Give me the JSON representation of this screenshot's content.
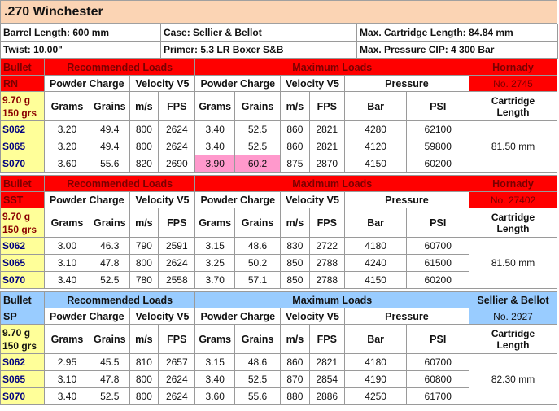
{
  "title": ".270 Winchester",
  "info": {
    "barrel_length": "Barrel Length: 600 mm",
    "twist": "Twist: 10.00\"",
    "case": "Case: Sellier & Bellot",
    "primer": "Primer: 5.3 LR Boxer S&B",
    "max_cartridge_length": "Max. Cartridge Length: 84.84 mm",
    "max_pressure": "Max. Pressure CIP: 4 300 Bar"
  },
  "headers": {
    "bullet": "Bullet",
    "recommended": "Recommended Loads",
    "maximum": "Maximum Loads",
    "powder_charge": "Powder Charge",
    "velocity": "Velocity V5",
    "pressure": "Pressure",
    "grams": "Grams",
    "grains": "Grains",
    "ms": "m/s",
    "fps": "FPS",
    "bar": "Bar",
    "psi": "PSI",
    "cartridge_length_1": "Cartridge",
    "cartridge_length_2": "Length"
  },
  "blocks": [
    {
      "type": "RN",
      "weight_g": "9.70 g",
      "weight_grs": "150 grs",
      "maker": "Hornady",
      "number": "No. 2745",
      "cartridge_length": "81.50 mm",
      "rows": [
        {
          "id": "S062",
          "rg": "3.20",
          "rgr": "49.4",
          "rms": "800",
          "rfps": "2624",
          "mg": "3.40",
          "mgr": "52.5",
          "mms": "860",
          "mfps": "2821",
          "bar": "4280",
          "psi": "62100"
        },
        {
          "id": "S065",
          "rg": "3.20",
          "rgr": "49.4",
          "rms": "800",
          "rfps": "2624",
          "mg": "3.40",
          "mgr": "52.5",
          "mms": "860",
          "mfps": "2821",
          "bar": "4120",
          "psi": "59800"
        },
        {
          "id": "S070",
          "rg": "3.60",
          "rgr": "55.6",
          "rms": "820",
          "rfps": "2690",
          "mg": "3.90",
          "mgr": "60.2",
          "mms": "875",
          "mfps": "2870",
          "bar": "4150",
          "psi": "60200"
        }
      ]
    },
    {
      "type": "SST",
      "weight_g": "9.70 g",
      "weight_grs": "150 grs",
      "maker": "Hornady",
      "number": "No. 27402",
      "cartridge_length": "81.50 mm",
      "rows": [
        {
          "id": "S062",
          "rg": "3.00",
          "rgr": "46.3",
          "rms": "790",
          "rfps": "2591",
          "mg": "3.15",
          "mgr": "48.6",
          "mms": "830",
          "mfps": "2722",
          "bar": "4180",
          "psi": "60700"
        },
        {
          "id": "S065",
          "rg": "3.10",
          "rgr": "47.8",
          "rms": "800",
          "rfps": "2624",
          "mg": "3.25",
          "mgr": "50.2",
          "mms": "850",
          "mfps": "2788",
          "bar": "4240",
          "psi": "61500"
        },
        {
          "id": "S070",
          "rg": "3.40",
          "rgr": "52.5",
          "rms": "780",
          "rfps": "2558",
          "mg": "3.70",
          "mgr": "57.1",
          "mms": "850",
          "mfps": "2788",
          "bar": "4150",
          "psi": "60200"
        }
      ]
    },
    {
      "type": "SP",
      "weight_g": "9.70 g",
      "weight_grs": "150 grs",
      "maker": "Sellier & Bellot",
      "number": "No. 2927",
      "cartridge_length": "82.30 mm",
      "rows": [
        {
          "id": "S062",
          "rg": "2.95",
          "rgr": "45.5",
          "rms": "810",
          "rfps": "2657",
          "mg": "3.15",
          "mgr": "48.6",
          "mms": "860",
          "mfps": "2821",
          "bar": "4180",
          "psi": "60700"
        },
        {
          "id": "S065",
          "rg": "3.10",
          "rgr": "47.8",
          "rms": "800",
          "rfps": "2624",
          "mg": "3.40",
          "mgr": "52.5",
          "mms": "870",
          "mfps": "2854",
          "bar": "4190",
          "psi": "60800"
        },
        {
          "id": "S070",
          "rg": "3.40",
          "rgr": "52.5",
          "rms": "800",
          "rfps": "2624",
          "mg": "3.60",
          "mgr": "55.6",
          "mms": "880",
          "mfps": "2886",
          "bar": "4250",
          "psi": "61700"
        }
      ]
    }
  ],
  "colors": {
    "header_red": "#ff0000",
    "header_blue": "#99ccff",
    "id_yellow": "#ffff99",
    "highlight_pink": "#ff99cc",
    "title_bg": "#fbd4b4"
  }
}
